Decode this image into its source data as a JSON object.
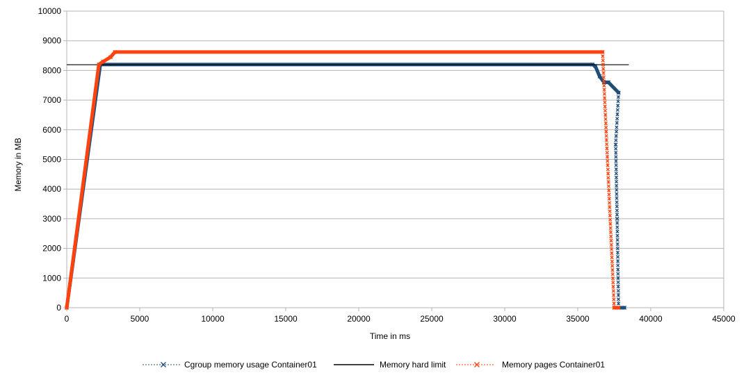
{
  "chart_data": {
    "type": "line",
    "title": "",
    "xlabel": "Time in ms",
    "ylabel": "Memory in MB",
    "xlim": [
      0,
      45000
    ],
    "ylim": [
      0,
      10000
    ],
    "x_ticks": [
      "0",
      "5000",
      "10000",
      "15000",
      "20000",
      "25000",
      "30000",
      "35000",
      "40000",
      "45000"
    ],
    "y_ticks": [
      "0",
      "1000",
      "2000",
      "3000",
      "4000",
      "5000",
      "6000",
      "7000",
      "8000",
      "9000",
      "10000"
    ],
    "grid": "horizontal",
    "legend_position": "bottom",
    "series": [
      {
        "name": "Cgroup memory usage Container01",
        "color": "#1f4e79",
        "style": "dotted-with-x-markers",
        "points": [
          [
            0,
            0
          ],
          [
            2300,
            8200
          ],
          [
            36000,
            8200
          ],
          [
            36200,
            8150
          ],
          [
            36500,
            7800
          ],
          [
            36800,
            7600
          ],
          [
            37100,
            7600
          ],
          [
            37800,
            7250
          ],
          [
            37600,
            5500
          ],
          [
            37700,
            3000
          ],
          [
            37800,
            0
          ],
          [
            38200,
            0
          ]
        ]
      },
      {
        "name": "Memory hard limit",
        "color": "#000000",
        "style": "solid",
        "points": [
          [
            0,
            8192
          ],
          [
            38500,
            8192
          ]
        ]
      },
      {
        "name": "Memory pages Container01",
        "color": "#ff420e",
        "style": "dotted-with-x-markers",
        "points": [
          [
            0,
            0
          ],
          [
            2200,
            8200
          ],
          [
            2500,
            8300
          ],
          [
            3000,
            8450
          ],
          [
            3300,
            8620
          ],
          [
            36700,
            8620
          ],
          [
            37500,
            0
          ],
          [
            37800,
            0
          ]
        ]
      }
    ]
  }
}
